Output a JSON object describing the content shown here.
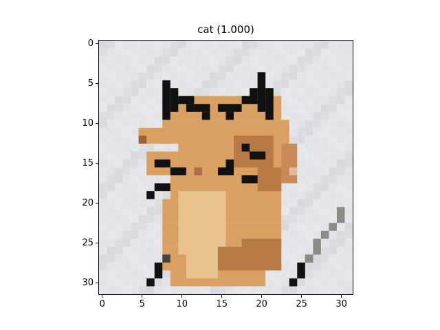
{
  "title": "cat (1.000)",
  "x_ticks": [
    "0",
    "5",
    "10",
    "15",
    "20",
    "25",
    "30"
  ],
  "y_ticks": [
    "0",
    "5",
    "10",
    "15",
    "20",
    "25",
    "30"
  ],
  "image": {
    "subject": "pixelated photo of an orange cat with black ear outlines on a light gray background",
    "resolution": [
      32,
      32
    ],
    "colors": {
      "background": "#e9eaee",
      "cat_orange": "#d9a062",
      "cat_light": "#e8c38e",
      "cat_dark": "#b87a45",
      "black": "#111111",
      "gray": "#8a8c86"
    }
  }
}
